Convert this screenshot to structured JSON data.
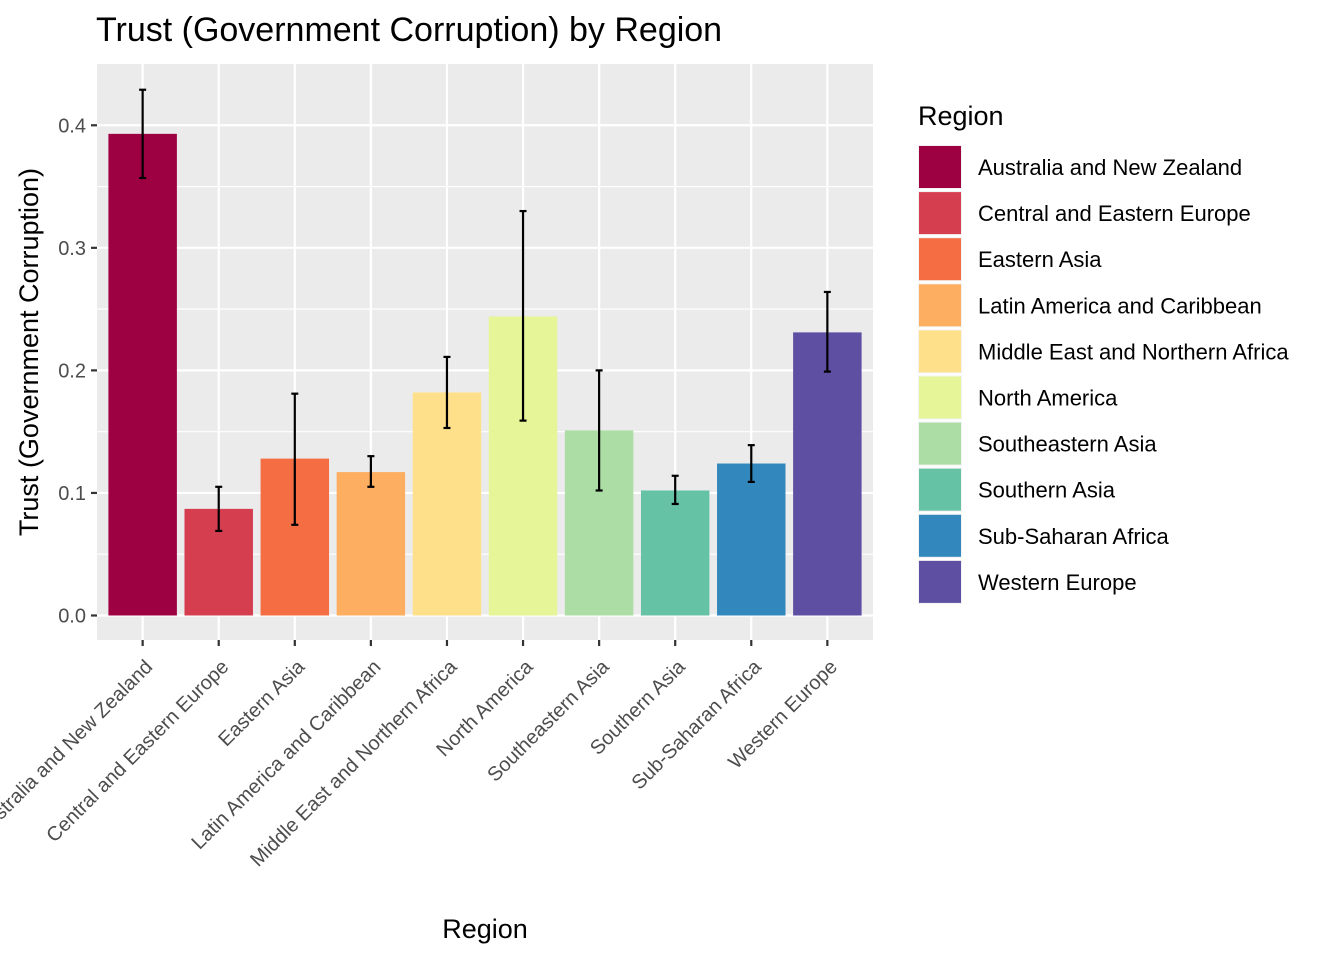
{
  "chart_data": {
    "type": "bar",
    "title": "Trust (Government Corruption) by Region",
    "xlabel": "Region",
    "ylabel": "Trust (Government Corruption)",
    "ylim": [
      -0.02,
      0.45
    ],
    "yticks": [
      0.0,
      0.1,
      0.2,
      0.3,
      0.4
    ],
    "ytick_labels": [
      "0.0",
      "0.1",
      "0.2",
      "0.3",
      "0.4"
    ],
    "grid": true,
    "legend_position": "right",
    "categories": [
      "Australia and New Zealand",
      "Central and Eastern Europe",
      "Eastern Asia",
      "Latin America and Caribbean",
      "Middle East and Northern Africa",
      "North America",
      "Southeastern Asia",
      "Southern Asia",
      "Sub-Saharan Africa",
      "Western Europe"
    ],
    "values": [
      0.393,
      0.087,
      0.128,
      0.117,
      0.182,
      0.244,
      0.151,
      0.102,
      0.124,
      0.231
    ],
    "error_low": [
      0.357,
      0.069,
      0.074,
      0.105,
      0.153,
      0.159,
      0.102,
      0.091,
      0.109,
      0.199
    ],
    "error_high": [
      0.429,
      0.105,
      0.181,
      0.13,
      0.211,
      0.33,
      0.2,
      0.114,
      0.139,
      0.264
    ],
    "colors": [
      "#9E0142",
      "#D53E4F",
      "#F46D43",
      "#FDAE61",
      "#FEE08B",
      "#E6F598",
      "#ABDDA4",
      "#66C2A5",
      "#3288BD",
      "#5E4FA2"
    ],
    "legend": {
      "title": "Region",
      "entries": [
        "Australia and New Zealand",
        "Central and Eastern Europe",
        "Eastern Asia",
        "Latin America and Caribbean",
        "Middle East and Northern Africa",
        "North America",
        "Southeastern Asia",
        "Southern Asia",
        "Sub-Saharan Africa",
        "Western Europe"
      ]
    }
  }
}
